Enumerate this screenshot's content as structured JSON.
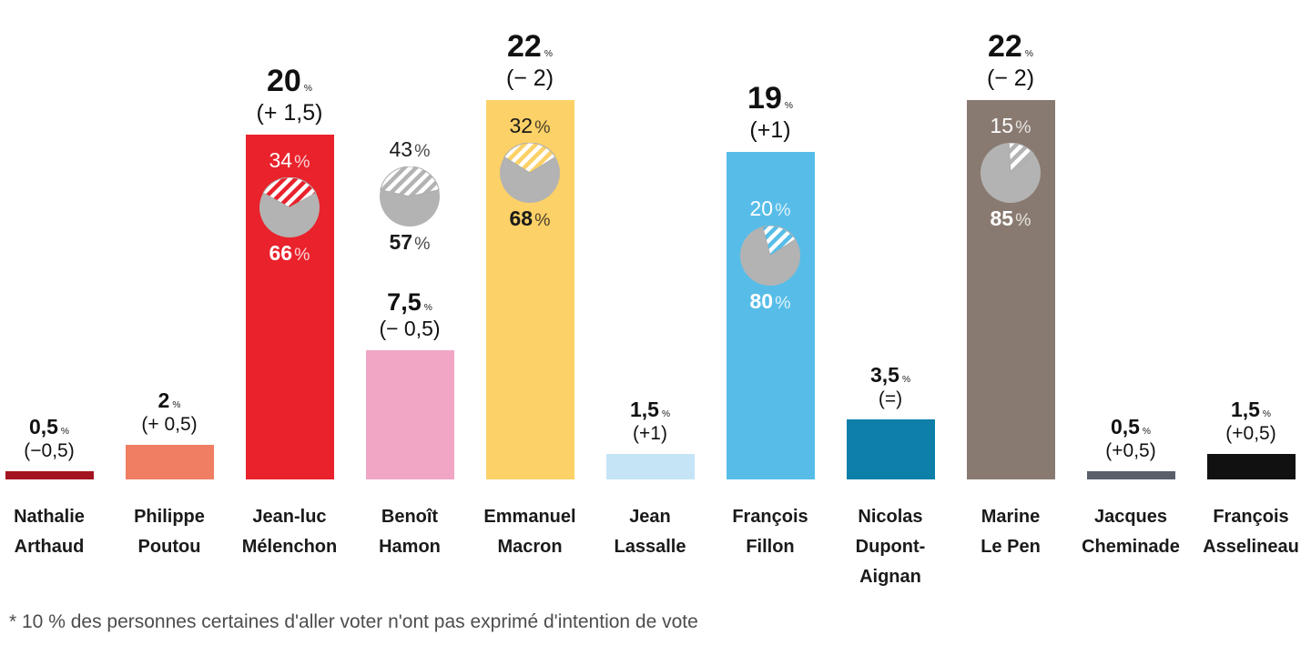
{
  "chart_data": {
    "type": "bar",
    "unit": "%",
    "footnote": "* 10 % des personnes certaines d'aller voter n'ont pas exprimé d'intention de vote",
    "ylim": [
      0,
      27.8
    ],
    "grid": false,
    "legend": "none",
    "pie_gray": "#b3b3b3",
    "categories": [
      "Nathalie Arthaud",
      "Philippe Poutou",
      "Jean-luc Mélenchon",
      "Benoît Hamon",
      "Emmanuel Macron",
      "Jean Lassalle",
      "François Fillon",
      "Nicolas Dupont-Aignan",
      "Marine Le Pen",
      "Jacques Cheminade",
      "François Asselineau"
    ],
    "values": [
      0.5,
      2,
      20,
      7.5,
      22,
      1.5,
      19,
      3.5,
      22,
      0.5,
      1.5
    ],
    "candidates": [
      {
        "id": "arthaud",
        "name_lines": [
          "Nathalie",
          "Arthaud"
        ],
        "value": 0.5,
        "value_label": "0,5",
        "change_label": "(−0,5)",
        "color": "#a31420",
        "emphasis": "minor"
      },
      {
        "id": "poutou",
        "name_lines": [
          "Philippe",
          "Poutou"
        ],
        "value": 2,
        "value_label": "2",
        "change_label": "(+ 0,5)",
        "color": "#ef7e62",
        "emphasis": "minor"
      },
      {
        "id": "melenchon",
        "name_lines": [
          "Jean-luc",
          "Mélenchon"
        ],
        "value": 20,
        "value_label": "20",
        "change_label": "(+ 1,5)",
        "color": "#e9222c",
        "emphasis": "major",
        "pie": {
          "changeable_pct": 34,
          "certain_pct": 66,
          "top_label": "34",
          "bottom_label": "66",
          "text_color": "#ffffff",
          "stripe_color": "#e9222c",
          "placement": "in-bar",
          "wedge_start_deg": -61,
          "wedge_end_deg": 61
        }
      },
      {
        "id": "hamon",
        "name_lines": [
          "Benoît",
          "Hamon"
        ],
        "value": 7.5,
        "value_label": "7,5",
        "change_label": "(− 0,5)",
        "color": "#f1a6c6",
        "emphasis": "medium",
        "pie": {
          "changeable_pct": 43,
          "certain_pct": 57,
          "top_label": "43",
          "bottom_label": "57",
          "text_color": "#1a1a1a",
          "stripe_color": "#b3b3b3",
          "placement": "floating",
          "wedge_start_deg": -77,
          "wedge_end_deg": 77
        }
      },
      {
        "id": "macron",
        "name_lines": [
          "Emmanuel",
          "Macron"
        ],
        "value": 22,
        "value_label": "22",
        "change_label": "(− 2)",
        "color": "#fcd167",
        "emphasis": "major",
        "pie": {
          "changeable_pct": 32,
          "certain_pct": 68,
          "top_label": "32",
          "bottom_label": "68",
          "text_color": "#1a1a1a",
          "stripe_color": "#fcd167",
          "placement": "in-bar",
          "wedge_start_deg": -58,
          "wedge_end_deg": 58
        }
      },
      {
        "id": "lassalle",
        "name_lines": [
          "Jean",
          "Lassalle"
        ],
        "value": 1.5,
        "value_label": "1,5",
        "change_label": "(+1)",
        "color": "#c5e5f7",
        "emphasis": "minor"
      },
      {
        "id": "fillon",
        "name_lines": [
          "François",
          "Fillon"
        ],
        "value": 19,
        "value_label": "19",
        "change_label": "(+1)",
        "color": "#57bde8",
        "emphasis": "major",
        "pie": {
          "changeable_pct": 20,
          "certain_pct": 80,
          "top_label": "20",
          "bottom_label": "80",
          "text_color": "#ffffff",
          "stripe_color": "#57bde8",
          "placement": "in-bar",
          "wedge_start_deg": -15,
          "wedge_end_deg": 57
        }
      },
      {
        "id": "dupont-aignan",
        "name_lines": [
          "Nicolas",
          "Dupont-",
          "Aignan"
        ],
        "value": 3.5,
        "value_label": "3,5",
        "change_label": "(=)",
        "color": "#0d7fa8",
        "emphasis": "minor"
      },
      {
        "id": "lepen",
        "name_lines": [
          "Marine",
          "Le Pen"
        ],
        "value": 22,
        "value_label": "22",
        "change_label": "(− 2)",
        "color": "#897a71",
        "emphasis": "major",
        "pie": {
          "changeable_pct": 15,
          "certain_pct": 85,
          "top_label": "15",
          "bottom_label": "85",
          "text_color": "#ffffff",
          "stripe_color": "#b3b3b3",
          "placement": "in-bar",
          "wedge_start_deg": -3,
          "wedge_end_deg": 51
        }
      },
      {
        "id": "cheminade",
        "name_lines": [
          "Jacques",
          "Cheminade"
        ],
        "value": 0.5,
        "value_label": "0,5",
        "change_label": "(+0,5)",
        "color": "#59606a",
        "emphasis": "minor"
      },
      {
        "id": "asselineau",
        "name_lines": [
          "François",
          "Asselineau"
        ],
        "value": 1.5,
        "value_label": "1,5",
        "change_label": "(+0,5)",
        "color": "#111111",
        "emphasis": "minor"
      }
    ]
  }
}
